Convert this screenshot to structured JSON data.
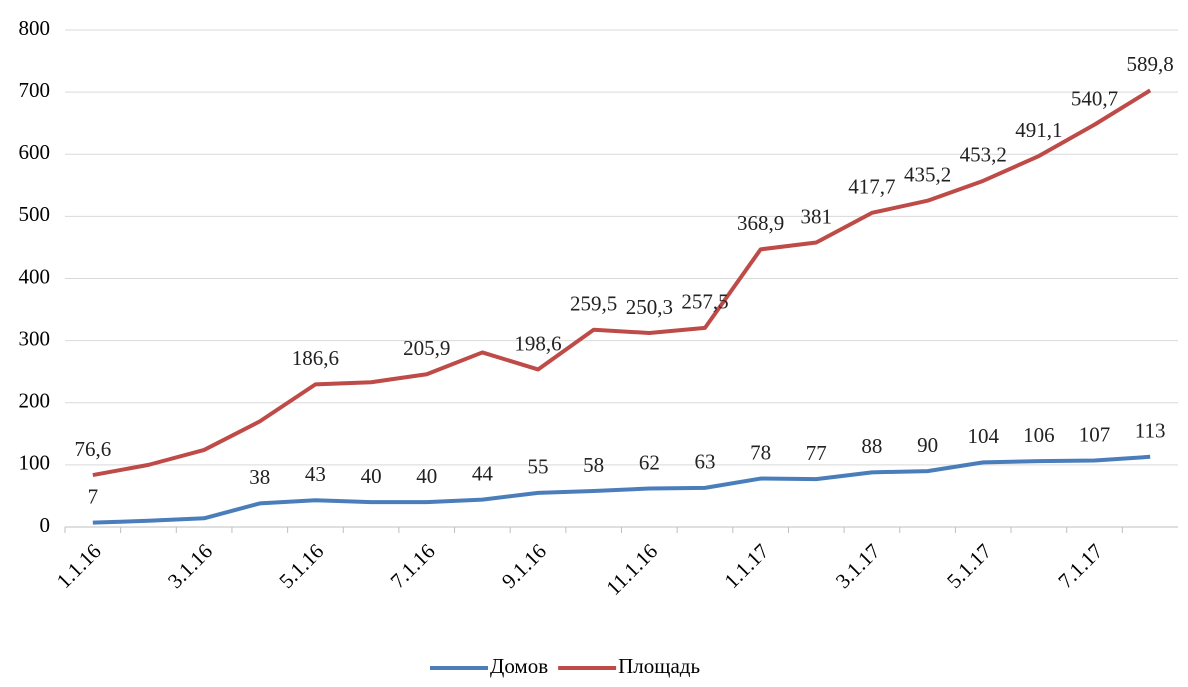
{
  "chart_data": {
    "type": "line",
    "stacked": true,
    "categories": [
      "1.1.16",
      null,
      "3.1.16",
      null,
      "5.1.16",
      null,
      "7.1.16",
      null,
      "9.1.16",
      null,
      "11.1.16",
      null,
      "1.1.17",
      null,
      "3.1.17",
      null,
      "5.1.17",
      null,
      "7.1.17",
      null
    ],
    "series": [
      {
        "name": "Домов",
        "color": "#4a7ebb",
        "values": [
          7,
          10,
          14,
          38,
          43,
          40,
          40,
          44,
          55,
          58,
          62,
          63,
          78,
          77,
          88,
          90,
          104,
          106,
          107,
          113
        ],
        "value_labels": [
          "7",
          null,
          null,
          "38",
          "43",
          "40",
          "40",
          "44",
          "55",
          "58",
          "62",
          "63",
          "78",
          "77",
          "88",
          "90",
          "104",
          "106",
          "107",
          "113"
        ]
      },
      {
        "name": "Площадь",
        "color": "#be4b48",
        "values": [
          76.6,
          90,
          110,
          132,
          186.6,
          193,
          205.9,
          237,
          198.6,
          259.5,
          250.3,
          257.5,
          368.9,
          381,
          417.7,
          435.2,
          453.2,
          491.1,
          540.7,
          589.8
        ],
        "value_labels": [
          "76,6",
          null,
          null,
          null,
          "186,6",
          null,
          "205,9",
          null,
          "198,6",
          "259,5",
          "250,3",
          "257,5",
          "368,9",
          "381",
          "417,7",
          "435,2",
          "453,2",
          "491,1",
          "540,7",
          "589,8"
        ]
      }
    ],
    "ylim": [
      0,
      800
    ],
    "yticks": [
      0,
      100,
      200,
      300,
      400,
      500,
      600,
      700,
      800
    ],
    "grid": true,
    "legend": "bottom"
  }
}
